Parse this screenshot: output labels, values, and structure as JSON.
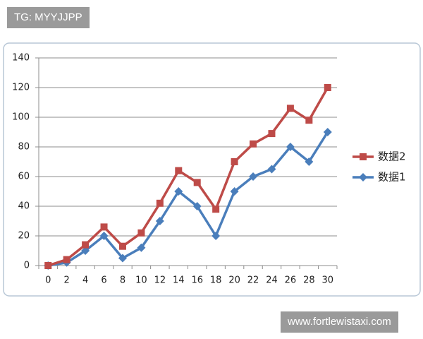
{
  "watermarks": {
    "top": "TG: MYYJJPP",
    "bottom": "www.fortlewistaxi.com"
  },
  "chart_data": {
    "type": "line",
    "categories": [
      0,
      2,
      4,
      6,
      8,
      10,
      12,
      14,
      16,
      18,
      20,
      22,
      24,
      26,
      28,
      30
    ],
    "series": [
      {
        "name": "数据2",
        "color": "#be4b48",
        "marker": "square",
        "values": [
          0,
          4,
          14,
          26,
          13,
          22,
          42,
          64,
          56,
          38,
          70,
          82,
          89,
          106,
          98,
          120
        ]
      },
      {
        "name": "数据1",
        "color": "#4a7ebb",
        "marker": "diamond",
        "values": [
          0,
          2,
          10,
          20,
          5,
          12,
          30,
          50,
          40,
          20,
          50,
          60,
          65,
          80,
          70,
          90
        ]
      }
    ],
    "ylim": [
      0,
      140
    ],
    "yticks": [
      0,
      20,
      40,
      60,
      80,
      100,
      120,
      140
    ],
    "grid": true,
    "legend": "right"
  }
}
